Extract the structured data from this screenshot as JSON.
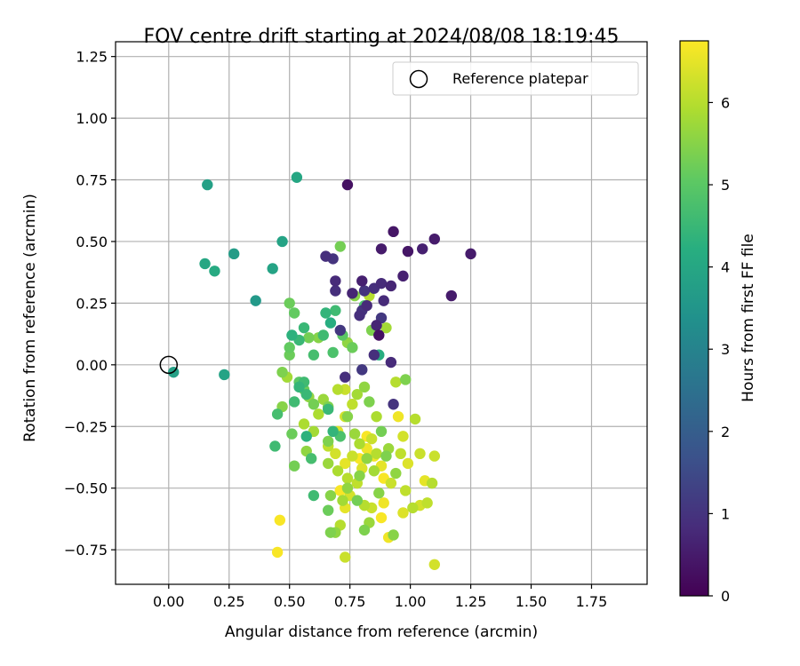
{
  "chart_data": {
    "type": "scatter",
    "title": "FOV centre drift starting at 2024/08/08 18:19:45",
    "xlabel": "Angular distance from reference (arcmin)",
    "ylabel": "Rotation from reference (arcmin)",
    "xlim": [
      -0.22,
      1.98
    ],
    "ylim": [
      -0.89,
      1.31
    ],
    "xticks": [
      "0.00",
      "0.25",
      "0.50",
      "0.75",
      "1.00",
      "1.25",
      "1.50",
      "1.75"
    ],
    "yticks": [
      "−0.75",
      "−0.50",
      "−0.25",
      "0.00",
      "0.25",
      "0.50",
      "0.75",
      "1.00",
      "1.25"
    ],
    "grid": true,
    "legend": {
      "position": "top-right",
      "entries": [
        "Reference platepar"
      ]
    },
    "reference_point": {
      "x": 0.0,
      "y": 0.0
    },
    "colorbar": {
      "label": "Hours from first FF file",
      "range": [
        0,
        6.75
      ],
      "ticks": [
        "0",
        "1",
        "2",
        "3",
        "4",
        "5",
        "6"
      ],
      "colormap": "viridis"
    },
    "points": [
      {
        "x": 0.74,
        "y": 0.73,
        "h": 0.3
      },
      {
        "x": 0.93,
        "y": 0.54,
        "h": 0.4
      },
      {
        "x": 1.1,
        "y": 0.51,
        "h": 0.5
      },
      {
        "x": 1.05,
        "y": 0.47,
        "h": 0.6
      },
      {
        "x": 0.99,
        "y": 0.46,
        "h": 0.4
      },
      {
        "x": 0.88,
        "y": 0.47,
        "h": 0.5
      },
      {
        "x": 1.25,
        "y": 0.45,
        "h": 0.5
      },
      {
        "x": 0.65,
        "y": 0.44,
        "h": 0.9
      },
      {
        "x": 0.68,
        "y": 0.43,
        "h": 1.0
      },
      {
        "x": 0.97,
        "y": 0.36,
        "h": 0.6
      },
      {
        "x": 0.92,
        "y": 0.32,
        "h": 0.7
      },
      {
        "x": 0.88,
        "y": 0.33,
        "h": 0.8
      },
      {
        "x": 0.85,
        "y": 0.31,
        "h": 0.9
      },
      {
        "x": 0.8,
        "y": 0.34,
        "h": 0.6
      },
      {
        "x": 0.69,
        "y": 0.34,
        "h": 0.8
      },
      {
        "x": 0.69,
        "y": 0.3,
        "h": 0.9
      },
      {
        "x": 0.76,
        "y": 0.29,
        "h": 0.7
      },
      {
        "x": 0.81,
        "y": 0.3,
        "h": 1.0
      },
      {
        "x": 1.17,
        "y": 0.28,
        "h": 0.5
      },
      {
        "x": 0.89,
        "y": 0.26,
        "h": 0.8
      },
      {
        "x": 0.82,
        "y": 0.24,
        "h": 0.8
      },
      {
        "x": 0.8,
        "y": 0.22,
        "h": 1.0
      },
      {
        "x": 0.79,
        "y": 0.2,
        "h": 0.9
      },
      {
        "x": 0.88,
        "y": 0.19,
        "h": 1.1
      },
      {
        "x": 0.86,
        "y": 0.16,
        "h": 0.7
      },
      {
        "x": 0.87,
        "y": 0.12,
        "h": 0.3
      },
      {
        "x": 0.71,
        "y": 0.14,
        "h": 1.1
      },
      {
        "x": 0.92,
        "y": 0.01,
        "h": 0.8
      },
      {
        "x": 0.85,
        "y": 0.04,
        "h": 0.9
      },
      {
        "x": 0.8,
        "y": -0.02,
        "h": 1.1
      },
      {
        "x": 0.73,
        "y": -0.05,
        "h": 0.9
      },
      {
        "x": 0.93,
        "y": -0.16,
        "h": 1.0
      },
      {
        "x": 0.16,
        "y": 0.73,
        "h": 3.8
      },
      {
        "x": 0.53,
        "y": 0.76,
        "h": 4.0
      },
      {
        "x": 0.47,
        "y": 0.5,
        "h": 3.9
      },
      {
        "x": 0.27,
        "y": 0.45,
        "h": 3.7
      },
      {
        "x": 0.15,
        "y": 0.41,
        "h": 4.0
      },
      {
        "x": 0.19,
        "y": 0.38,
        "h": 4.1
      },
      {
        "x": 0.43,
        "y": 0.39,
        "h": 3.9
      },
      {
        "x": 0.36,
        "y": 0.26,
        "h": 3.6
      },
      {
        "x": 0.02,
        "y": -0.03,
        "h": 3.8
      },
      {
        "x": 0.23,
        "y": -0.04,
        "h": 3.9
      },
      {
        "x": 0.65,
        "y": 0.21,
        "h": 4.4
      },
      {
        "x": 0.69,
        "y": 0.22,
        "h": 4.6
      },
      {
        "x": 0.67,
        "y": 0.17,
        "h": 4.2
      },
      {
        "x": 0.56,
        "y": 0.15,
        "h": 4.5
      },
      {
        "x": 0.51,
        "y": 0.12,
        "h": 4.3
      },
      {
        "x": 0.64,
        "y": 0.12,
        "h": 4.6
      },
      {
        "x": 0.6,
        "y": 0.04,
        "h": 4.7
      },
      {
        "x": 0.54,
        "y": 0.1,
        "h": 4.5
      },
      {
        "x": 0.68,
        "y": 0.05,
        "h": 4.8
      },
      {
        "x": 0.56,
        "y": -0.07,
        "h": 4.6
      },
      {
        "x": 0.54,
        "y": -0.09,
        "h": 4.4
      },
      {
        "x": 0.57,
        "y": -0.12,
        "h": 4.5
      },
      {
        "x": 0.52,
        "y": -0.15,
        "h": 4.6
      },
      {
        "x": 0.45,
        "y": -0.2,
        "h": 4.7
      },
      {
        "x": 0.66,
        "y": -0.18,
        "h": 4.5
      },
      {
        "x": 0.68,
        "y": -0.27,
        "h": 4.4
      },
      {
        "x": 0.57,
        "y": -0.29,
        "h": 4.3
      },
      {
        "x": 0.44,
        "y": -0.33,
        "h": 4.6
      },
      {
        "x": 0.59,
        "y": -0.38,
        "h": 4.7
      },
      {
        "x": 0.6,
        "y": -0.53,
        "h": 4.6
      },
      {
        "x": 0.71,
        "y": -0.29,
        "h": 4.8
      },
      {
        "x": 0.87,
        "y": 0.04,
        "h": 4.2
      },
      {
        "x": 0.81,
        "y": 0.24,
        "h": 4.8
      },
      {
        "x": 0.72,
        "y": 0.12,
        "h": 5.0
      },
      {
        "x": 0.5,
        "y": 0.25,
        "h": 5.2
      },
      {
        "x": 0.52,
        "y": 0.21,
        "h": 5.1
      },
      {
        "x": 0.71,
        "y": 0.48,
        "h": 5.3
      },
      {
        "x": 0.77,
        "y": 0.28,
        "h": 5.5
      },
      {
        "x": 0.74,
        "y": 0.09,
        "h": 5.6
      },
      {
        "x": 0.76,
        "y": 0.07,
        "h": 5.2
      },
      {
        "x": 0.84,
        "y": 0.14,
        "h": 5.4
      },
      {
        "x": 0.9,
        "y": 0.15,
        "h": 5.8
      },
      {
        "x": 0.58,
        "y": 0.11,
        "h": 5.3
      },
      {
        "x": 0.62,
        "y": 0.11,
        "h": 5.5
      },
      {
        "x": 0.5,
        "y": 0.07,
        "h": 5.1
      },
      {
        "x": 0.5,
        "y": 0.04,
        "h": 5.2
      },
      {
        "x": 0.47,
        "y": -0.03,
        "h": 5.4
      },
      {
        "x": 0.49,
        "y": -0.05,
        "h": 5.8
      },
      {
        "x": 0.54,
        "y": -0.07,
        "h": 5.0
      },
      {
        "x": 0.56,
        "y": -0.1,
        "h": 5.2
      },
      {
        "x": 0.58,
        "y": -0.13,
        "h": 5.6
      },
      {
        "x": 0.6,
        "y": -0.16,
        "h": 5.3
      },
      {
        "x": 0.64,
        "y": -0.14,
        "h": 5.7
      },
      {
        "x": 0.66,
        "y": -0.17,
        "h": 5.4
      },
      {
        "x": 0.62,
        "y": -0.2,
        "h": 5.9
      },
      {
        "x": 0.47,
        "y": -0.17,
        "h": 5.5
      },
      {
        "x": 0.51,
        "y": -0.28,
        "h": 5.2
      },
      {
        "x": 0.52,
        "y": -0.41,
        "h": 5.3
      },
      {
        "x": 0.57,
        "y": -0.35,
        "h": 5.6
      },
      {
        "x": 0.6,
        "y": -0.27,
        "h": 5.8
      },
      {
        "x": 0.56,
        "y": -0.24,
        "h": 5.9
      },
      {
        "x": 0.66,
        "y": -0.31,
        "h": 5.4
      },
      {
        "x": 0.66,
        "y": -0.4,
        "h": 5.7
      },
      {
        "x": 0.7,
        "y": -0.43,
        "h": 5.9
      },
      {
        "x": 0.67,
        "y": -0.53,
        "h": 5.5
      },
      {
        "x": 0.66,
        "y": -0.59,
        "h": 5.2
      },
      {
        "x": 0.67,
        "y": -0.68,
        "h": 5.4
      },
      {
        "x": 0.69,
        "y": -0.68,
        "h": 5.6
      },
      {
        "x": 0.72,
        "y": -0.55,
        "h": 5.8
      },
      {
        "x": 0.74,
        "y": -0.5,
        "h": 5.6
      },
      {
        "x": 0.78,
        "y": -0.55,
        "h": 5.3
      },
      {
        "x": 0.79,
        "y": -0.45,
        "h": 5.5
      },
      {
        "x": 0.81,
        "y": -0.67,
        "h": 5.4
      },
      {
        "x": 0.83,
        "y": -0.64,
        "h": 5.7
      },
      {
        "x": 0.93,
        "y": -0.69,
        "h": 5.5
      },
      {
        "x": 0.74,
        "y": -0.21,
        "h": 5.5
      },
      {
        "x": 0.77,
        "y": -0.28,
        "h": 5.7
      },
      {
        "x": 0.79,
        "y": -0.32,
        "h": 5.9
      },
      {
        "x": 0.82,
        "y": -0.38,
        "h": 5.6
      },
      {
        "x": 0.85,
        "y": -0.43,
        "h": 5.8
      },
      {
        "x": 0.87,
        "y": -0.52,
        "h": 5.5
      },
      {
        "x": 0.83,
        "y": -0.15,
        "h": 5.4
      },
      {
        "x": 0.78,
        "y": -0.12,
        "h": 5.8
      },
      {
        "x": 0.81,
        "y": -0.09,
        "h": 5.6
      },
      {
        "x": 0.86,
        "y": -0.21,
        "h": 5.9
      },
      {
        "x": 0.88,
        "y": -0.27,
        "h": 5.3
      },
      {
        "x": 0.91,
        "y": -0.34,
        "h": 5.7
      },
      {
        "x": 0.9,
        "y": -0.37,
        "h": 5.4
      },
      {
        "x": 0.94,
        "y": -0.44,
        "h": 5.6
      },
      {
        "x": 0.98,
        "y": -0.06,
        "h": 5.4
      },
      {
        "x": 0.94,
        "y": -0.07,
        "h": 6.0
      },
      {
        "x": 0.83,
        "y": 0.28,
        "h": 6.0
      },
      {
        "x": 0.7,
        "y": -0.1,
        "h": 6.0
      },
      {
        "x": 0.73,
        "y": -0.1,
        "h": 6.2
      },
      {
        "x": 0.76,
        "y": -0.16,
        "h": 6.1
      },
      {
        "x": 0.73,
        "y": -0.21,
        "h": 6.3
      },
      {
        "x": 0.7,
        "y": -0.27,
        "h": 6.4
      },
      {
        "x": 0.66,
        "y": -0.33,
        "h": 6.1
      },
      {
        "x": 0.69,
        "y": -0.36,
        "h": 6.3
      },
      {
        "x": 0.73,
        "y": -0.4,
        "h": 6.5
      },
      {
        "x": 0.76,
        "y": -0.37,
        "h": 6.2
      },
      {
        "x": 0.74,
        "y": -0.46,
        "h": 6.0
      },
      {
        "x": 0.71,
        "y": -0.51,
        "h": 6.7
      },
      {
        "x": 0.75,
        "y": -0.53,
        "h": 6.3
      },
      {
        "x": 0.78,
        "y": -0.48,
        "h": 6.1
      },
      {
        "x": 0.8,
        "y": -0.42,
        "h": 6.4
      },
      {
        "x": 0.82,
        "y": -0.34,
        "h": 6.6
      },
      {
        "x": 0.84,
        "y": -0.3,
        "h": 6.2
      },
      {
        "x": 0.86,
        "y": -0.36,
        "h": 6.0
      },
      {
        "x": 0.88,
        "y": -0.41,
        "h": 6.5
      },
      {
        "x": 0.89,
        "y": -0.46,
        "h": 6.7
      },
      {
        "x": 0.92,
        "y": -0.48,
        "h": 6.2
      },
      {
        "x": 0.96,
        "y": -0.36,
        "h": 6.1
      },
      {
        "x": 0.97,
        "y": -0.29,
        "h": 6.3
      },
      {
        "x": 0.95,
        "y": -0.21,
        "h": 6.6
      },
      {
        "x": 1.02,
        "y": -0.22,
        "h": 6.0
      },
      {
        "x": 1.04,
        "y": -0.36,
        "h": 6.2
      },
      {
        "x": 0.99,
        "y": -0.4,
        "h": 6.4
      },
      {
        "x": 0.98,
        "y": -0.51,
        "h": 6.1
      },
      {
        "x": 1.01,
        "y": -0.58,
        "h": 6.0
      },
      {
        "x": 1.04,
        "y": -0.57,
        "h": 6.3
      },
      {
        "x": 1.07,
        "y": -0.56,
        "h": 6.1
      },
      {
        "x": 1.06,
        "y": -0.47,
        "h": 6.5
      },
      {
        "x": 1.09,
        "y": -0.48,
        "h": 6.0
      },
      {
        "x": 1.1,
        "y": -0.37,
        "h": 6.2
      },
      {
        "x": 0.97,
        "y": -0.6,
        "h": 6.4
      },
      {
        "x": 0.89,
        "y": -0.56,
        "h": 6.6
      },
      {
        "x": 0.88,
        "y": -0.62,
        "h": 6.7
      },
      {
        "x": 0.84,
        "y": -0.58,
        "h": 6.2
      },
      {
        "x": 0.73,
        "y": -0.58,
        "h": 6.5
      },
      {
        "x": 0.71,
        "y": -0.65,
        "h": 6.0
      },
      {
        "x": 0.81,
        "y": -0.57,
        "h": 6.0
      },
      {
        "x": 0.91,
        "y": -0.7,
        "h": 6.6
      },
      {
        "x": 0.73,
        "y": -0.78,
        "h": 6.2
      },
      {
        "x": 1.1,
        "y": -0.81,
        "h": 6.3
      },
      {
        "x": 0.46,
        "y": -0.63,
        "h": 6.7
      },
      {
        "x": 0.45,
        "y": -0.76,
        "h": 6.7
      },
      {
        "x": 0.71,
        "y": -0.51,
        "h": 6.7
      },
      {
        "x": 0.82,
        "y": -0.29,
        "h": 6.7
      },
      {
        "x": 0.85,
        "y": -0.37,
        "h": 6.6
      },
      {
        "x": 0.79,
        "y": -0.38,
        "h": 6.7
      }
    ]
  }
}
